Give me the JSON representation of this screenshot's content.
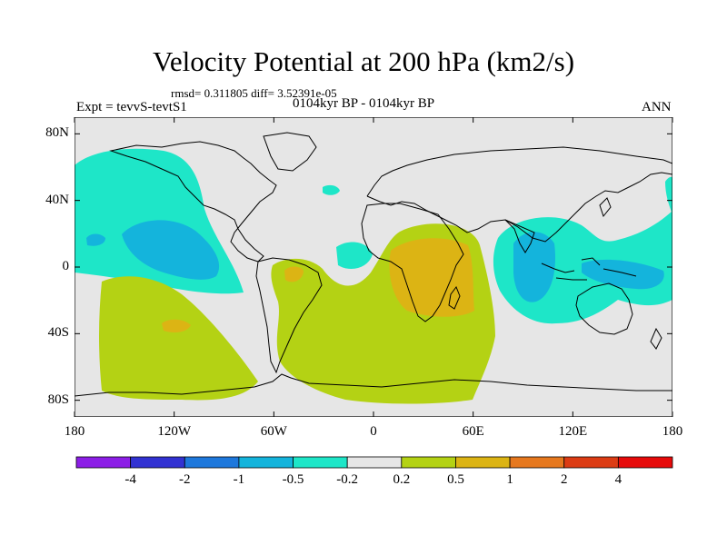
{
  "title": "Velocity Potential at 200 hPa (km2/s)",
  "stats": "rmsd= 0.311805 diff= 3.52391e-05",
  "expt": "Expt = tevvS-tevtS1",
  "period": "0104kyr BP - 0104kyr BP",
  "season": "ANN",
  "map": {
    "lon_ticks": [
      "180",
      "120W",
      "60W",
      "0",
      "60E",
      "120E",
      "180"
    ],
    "lat_ticks": [
      "80N",
      "40N",
      "0",
      "40S",
      "80S"
    ],
    "lon_range": [
      -180,
      180
    ],
    "lat_range": [
      -90,
      90
    ],
    "background_color": "#e6e6e6",
    "coastline_color": "#000000"
  },
  "colorbar": {
    "levels": [
      "-4",
      "-2",
      "-1",
      "-0.5",
      "-0.2",
      "0.2",
      "0.5",
      "1",
      "2",
      "4"
    ],
    "colors": [
      "#8c1ee6",
      "#3232d2",
      "#1e78dc",
      "#14b4dc",
      "#1ee6c8",
      "#e6e6e6",
      "#b4d214",
      "#dcb414",
      "#e6781e",
      "#dc3c14",
      "#e60a0a"
    ]
  },
  "fields": [
    {
      "level": "-0.5 to -0.2",
      "color": "#1ee6c8",
      "region": "North Pacific"
    },
    {
      "level": "-1 to -0.5",
      "color": "#14b4dc",
      "region": "East-Central Pacific"
    },
    {
      "level": "-0.5 to -0.2",
      "color": "#1ee6c8",
      "region": "Indian Ocean / Maritime Continent"
    },
    {
      "level": "-1 to -0.5",
      "color": "#14b4dc",
      "region": "Indonesia / Western Pacific"
    },
    {
      "level": "0.2 to 0.5",
      "color": "#b4d214",
      "region": "South Pacific"
    },
    {
      "level": "0.2 to 0.5",
      "color": "#b4d214",
      "region": "South Atlantic / Southern Ocean"
    },
    {
      "level": "0.2 to 0.5",
      "color": "#b4d214",
      "region": "Africa"
    },
    {
      "level": "0.5 to 1",
      "color": "#dcb414",
      "region": "East Africa"
    },
    {
      "level": "0.5 to 1",
      "color": "#dcb414",
      "region": "Amazon"
    },
    {
      "level": "0.5 to 1",
      "color": "#dcb414",
      "region": "Southeast Pacific"
    }
  ]
}
